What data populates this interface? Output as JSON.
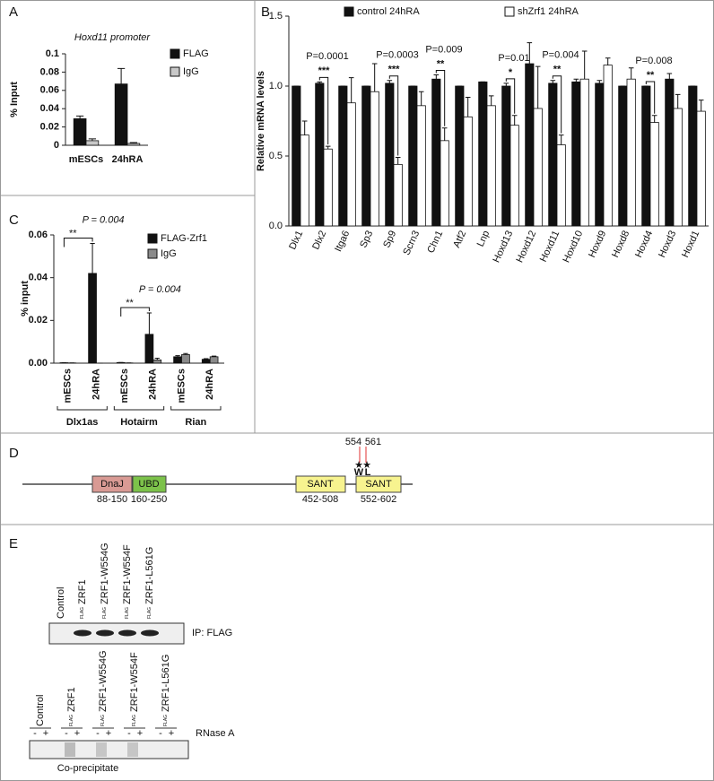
{
  "chart_data": [
    {
      "type": "bar",
      "panel": "A",
      "title": "Hoxd11 promoter",
      "ylabel": "% Input",
      "categories": [
        "mESCs",
        "24hRA"
      ],
      "series": [
        {
          "name": "FLAG",
          "color": "#111111",
          "values": [
            0.029,
            0.067
          ],
          "errors": [
            0.003,
            0.017
          ]
        },
        {
          "name": "IgG",
          "color": "#c8c8c8",
          "values": [
            0.005,
            0.002
          ],
          "errors": [
            0.002,
            0.001
          ]
        }
      ],
      "ylim": [
        0,
        0.1
      ],
      "yticks": [
        0,
        0.02,
        0.04,
        0.06,
        0.08,
        0.1
      ]
    },
    {
      "type": "bar",
      "panel": "B",
      "ylabel": "Relative mRNA levels",
      "categories": [
        "Dlx1",
        "Dlx2",
        "Itga6",
        "Sp3",
        "Sp9",
        "Scrn3",
        "Chn1",
        "Atf2",
        "Lnp",
        "Hoxd13",
        "Hoxd12",
        "Hoxd11",
        "Hoxd10",
        "Hoxd9",
        "Hoxd8",
        "Hoxd4",
        "Hoxd3",
        "Hoxd1"
      ],
      "series": [
        {
          "name": "control 24hRA",
          "color": "#111111",
          "values": [
            1.0,
            1.02,
            1.0,
            1.0,
            1.02,
            1.0,
            1.05,
            1.0,
            1.03,
            1.0,
            1.16,
            1.02,
            1.03,
            1.02,
            1.0,
            1.0,
            1.05,
            1.0
          ],
          "errors": [
            0,
            0.01,
            0,
            0,
            0.02,
            0,
            0.03,
            0,
            0,
            0.02,
            0.15,
            0.02,
            0.02,
            0.02,
            0,
            0,
            0.04,
            0
          ]
        },
        {
          "name": "shZrf1 24hRA",
          "color": "#ffffff",
          "values": [
            0.65,
            0.55,
            0.88,
            0.96,
            0.44,
            0.86,
            0.61,
            0.78,
            0.86,
            0.72,
            0.84,
            0.58,
            1.05,
            1.15,
            1.05,
            0.74,
            0.84,
            0.82
          ],
          "errors": [
            0.1,
            0.02,
            0.18,
            0.2,
            0.05,
            0.1,
            0.09,
            0.14,
            0.07,
            0.07,
            0.3,
            0.07,
            0.2,
            0.05,
            0.08,
            0.05,
            0.1,
            0.08
          ]
        }
      ],
      "ylim": [
        0,
        1.5
      ],
      "yticks": [
        {
          "value": 0,
          "label": "0.0"
        },
        {
          "value": 0.5,
          "label": "0.5"
        },
        {
          "value": 1,
          "label": "1.0"
        },
        {
          "value": 1.5,
          "label": "1.5"
        }
      ],
      "annotations": [
        {
          "category": "Dlx2",
          "p": "P=0.0001",
          "stars": "***"
        },
        {
          "category": "Sp9",
          "p": "P=0.0003",
          "stars": "***"
        },
        {
          "category": "Chn1",
          "p": "P=0.009",
          "stars": "**"
        },
        {
          "category": "Hoxd13",
          "p": "P=0.01",
          "stars": "*"
        },
        {
          "category": "Hoxd11",
          "p": "P=0.004",
          "stars": "**"
        },
        {
          "category": "Hoxd4",
          "p": "P=0.008",
          "stars": "**"
        }
      ]
    },
    {
      "type": "bar",
      "panel": "C",
      "ylabel": "% input",
      "categories": [
        "mESCs",
        "24hRA",
        "mESCs",
        "24hRA",
        "mESCs",
        "24hRA"
      ],
      "groups": [
        "Dlx1as",
        "Hotairm",
        "Rian"
      ],
      "series": [
        {
          "name": "FLAG-Zrf1",
          "color": "#111111",
          "values": [
            0.0002,
            0.042,
            0.0003,
            0.0135,
            0.003,
            0.0018
          ],
          "errors": [
            0,
            0.014,
            0,
            0.01,
            0.0005,
            0.0003
          ]
        },
        {
          "name": "IgG",
          "color": "#8a8a8a",
          "values": [
            0.0001,
            0,
            0.0001,
            0.0015,
            0.004,
            0.003
          ],
          "errors": [
            0,
            0,
            0,
            0.0008,
            0.0005,
            0.0003
          ]
        }
      ],
      "ylim": [
        0,
        0.06
      ],
      "yticks": [
        {
          "value": 0,
          "label": "0.00"
        },
        {
          "value": 0.02,
          "label": "0.02"
        },
        {
          "value": 0.04,
          "label": "0.04"
        },
        {
          "value": 0.06,
          "label": "0.06"
        }
      ],
      "annotations": [
        {
          "group": "Dlx1as",
          "p": "P = 0.004",
          "stars": "**"
        },
        {
          "group": "Hotairm",
          "p": "P = 0.004",
          "stars": "**"
        }
      ]
    }
  ],
  "domain_diagram": {
    "panel": "D",
    "domains": [
      {
        "name": "DnaJ",
        "range": "88-150"
      },
      {
        "name": "UBD",
        "range": "160-250"
      },
      {
        "name": "SANT",
        "range": "452-508"
      },
      {
        "name": "SANT",
        "range": "552-602"
      }
    ],
    "sites": [
      {
        "position": "554",
        "residue": "W",
        "mark": "★"
      },
      {
        "position": "561",
        "residue": "L",
        "mark": "★"
      }
    ]
  },
  "blot": {
    "panel": "E",
    "lanes": [
      "Control",
      "ZRF1",
      "ZRF1-W554G",
      "ZRF1-W554F",
      "ZRF1-L561G"
    ],
    "tag": "FLAG",
    "top_label": "IP: FLAG",
    "minus": "-",
    "plus": "+",
    "treatment": "RNase A",
    "bottom_label": "Co-precipitate"
  }
}
